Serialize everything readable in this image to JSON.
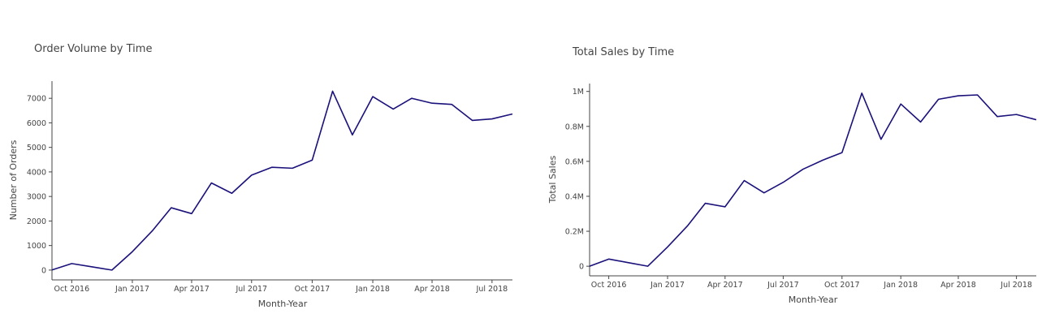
{
  "colors": {
    "line": "#1a117a",
    "axis": "#444444",
    "text": "#444444"
  },
  "chart_data": [
    {
      "type": "line",
      "title": "Order Volume by Time",
      "xlabel": "Month-Year",
      "ylabel": "Number of Orders",
      "x": [
        "2016-09-01",
        "2016-10-01",
        "2016-11-01",
        "2016-12-01",
        "2017-01-01",
        "2017-02-01",
        "2017-03-01",
        "2017-04-01",
        "2017-05-01",
        "2017-06-01",
        "2017-07-01",
        "2017-08-01",
        "2017-09-01",
        "2017-10-01",
        "2017-11-01",
        "2017-12-01",
        "2018-01-01",
        "2018-02-01",
        "2018-03-01",
        "2018-04-01",
        "2018-05-01",
        "2018-06-01",
        "2018-07-01",
        "2018-08-01"
      ],
      "series": [
        {
          "values": [
            4,
            265,
            130,
            1,
            750,
            1620,
            2540,
            2300,
            3550,
            3130,
            3870,
            4190,
            4150,
            4480,
            7290,
            5510,
            7070,
            6560,
            7000,
            6800,
            6750,
            6100,
            6160,
            6360
          ]
        }
      ],
      "ylim": [
        -400,
        7700
      ],
      "xlim": [
        "2016-09-01",
        "2018-08-01"
      ],
      "yticks": [
        0,
        1000,
        2000,
        3000,
        4000,
        5000,
        6000,
        7000
      ],
      "ytick_labels": [
        "0",
        "1000",
        "2000",
        "3000",
        "4000",
        "5000",
        "6000",
        "7000"
      ],
      "xticks": [
        "2016-10-01",
        "2017-01-01",
        "2017-04-01",
        "2017-07-01",
        "2017-10-01",
        "2018-01-01",
        "2018-04-01",
        "2018-07-01"
      ],
      "xtick_labels": [
        "Oct 2016",
        "Jan 2017",
        "Apr 2017",
        "Jul 2017",
        "Oct 2017",
        "Jan 2018",
        "Apr 2018",
        "Jul 2018"
      ],
      "grid": false
    },
    {
      "type": "line",
      "title": "Total Sales by Time",
      "xlabel": "Month-Year",
      "ylabel": "Total Sales",
      "x": [
        "2016-09-01",
        "2016-10-01",
        "2016-11-01",
        "2016-12-01",
        "2017-01-01",
        "2017-02-01",
        "2017-03-01",
        "2017-04-01",
        "2017-05-01",
        "2017-06-01",
        "2017-07-01",
        "2017-08-01",
        "2017-09-01",
        "2017-10-01",
        "2017-11-01",
        "2017-12-01",
        "2018-01-01",
        "2018-02-01",
        "2018-03-01",
        "2018-04-01",
        "2018-05-01",
        "2018-06-01",
        "2018-07-01",
        "2018-08-01"
      ],
      "series": [
        {
          "values": [
            0,
            41000,
            20000,
            0,
            110000,
            230000,
            360000,
            340000,
            490000,
            420000,
            480000,
            555000,
            607000,
            650000,
            990000,
            726000,
            928000,
            825000,
            955000,
            975000,
            980000,
            856000,
            868000,
            838000
          ]
        }
      ],
      "ylim": [
        -55000,
        1045000
      ],
      "xlim": [
        "2016-09-01",
        "2018-08-01"
      ],
      "yticks": [
        0,
        200000,
        400000,
        600000,
        800000,
        1000000
      ],
      "ytick_labels": [
        "0",
        "0.2M",
        "0.4M",
        "0.6M",
        "0.8M",
        "1M"
      ],
      "xticks": [
        "2016-10-01",
        "2017-01-01",
        "2017-04-01",
        "2017-07-01",
        "2017-10-01",
        "2018-01-01",
        "2018-04-01",
        "2018-07-01"
      ],
      "xtick_labels": [
        "Oct 2016",
        "Jan 2017",
        "Apr 2017",
        "Jul 2017",
        "Oct 2017",
        "Jan 2018",
        "Apr 2018",
        "Jul 2018"
      ],
      "grid": false
    }
  ]
}
